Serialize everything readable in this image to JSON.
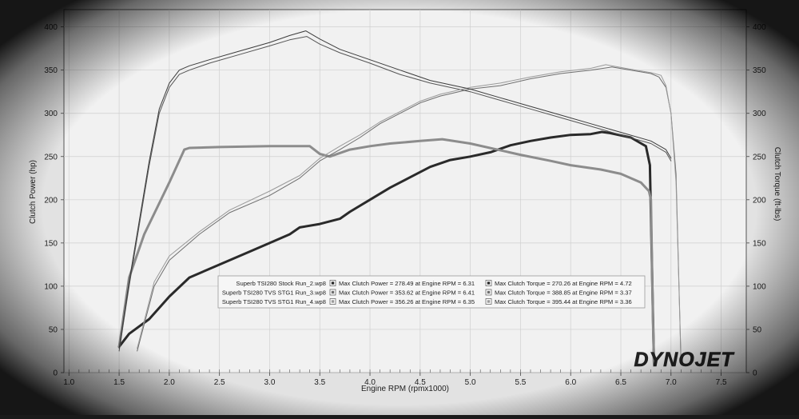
{
  "chart_data": {
    "type": "line",
    "xlabel": "Engine RPM (rpmx1000)",
    "ylabel_left": "Clutch Power (hp)",
    "ylabel_right": "Clutch Torque (ft-lbs)",
    "xlim": [
      0.95,
      7.75
    ],
    "ylim_left": [
      0,
      420
    ],
    "ylim_right": [
      0,
      420
    ],
    "x_ticks": [
      "1.0",
      "1.5",
      "2.0",
      "2.5",
      "3.0",
      "3.5",
      "4.0",
      "4.5",
      "5.0",
      "5.5",
      "6.0",
      "6.5",
      "7.0",
      "7.5"
    ],
    "y_ticks_left": [
      "0",
      "50",
      "100",
      "150",
      "200",
      "250",
      "300",
      "350",
      "400"
    ],
    "y_ticks_right": [
      "0",
      "50",
      "100",
      "150",
      "200",
      "250",
      "300",
      "350",
      "400"
    ],
    "grid": true,
    "logo": "DYNOJET",
    "legend": {
      "placement": "center",
      "rows": [
        {
          "run": "Superb TSI280 Stock Run_2.wp8",
          "power": "Max Clutch Power = 278.49 at Engine RPM = 6.31",
          "torque": "Max Clutch Torque = 270.26 at Engine RPM = 4.72"
        },
        {
          "run": "Superb TSI280 TVS STG1 Run_3.wp8",
          "power": "Max Clutch Power = 353.62 at Engine RPM = 6.41",
          "torque": "Max Clutch Torque = 388.85 at Engine RPM = 3.37"
        },
        {
          "run": "Superb TSI280 TVS STG1 Run_4.wp8",
          "power": "Max Clutch Power = 356.26 at Engine RPM = 6.35",
          "torque": "Max Clutch Torque = 395.44 at Engine RPM = 3.36"
        }
      ]
    },
    "series": [
      {
        "name": "Superb TSI280 Stock Run_2.wp8",
        "measure": "power",
        "color": "#2a2a2a",
        "width": 3,
        "x": [
          1.5,
          1.6,
          1.8,
          2.0,
          2.2,
          2.5,
          2.8,
          3.0,
          3.2,
          3.3,
          3.5,
          3.7,
          3.8,
          4.0,
          4.2,
          4.4,
          4.6,
          4.8,
          5.0,
          5.2,
          5.4,
          5.6,
          5.8,
          6.0,
          6.2,
          6.31,
          6.4,
          6.6,
          6.75,
          6.79,
          6.8,
          6.83
        ],
        "y": [
          30,
          45,
          62,
          88,
          110,
          125,
          140,
          150,
          160,
          168,
          172,
          178,
          186,
          200,
          214,
          226,
          238,
          246,
          250,
          255,
          263,
          268,
          272,
          275,
          276,
          278.5,
          277,
          272,
          262,
          240,
          180,
          10
        ]
      },
      {
        "name": "Superb TSI280 Stock Run_2.wp8",
        "measure": "torque",
        "color": "#8c8c8c",
        "width": 3,
        "x": [
          1.5,
          1.6,
          1.75,
          2.0,
          2.15,
          2.2,
          2.5,
          3.0,
          3.4,
          3.5,
          3.6,
          3.8,
          4.0,
          4.2,
          4.5,
          4.72,
          5.0,
          5.5,
          5.8,
          6.0,
          6.3,
          6.5,
          6.7,
          6.78,
          6.8,
          6.82,
          6.83
        ],
        "y": [
          30,
          110,
          160,
          220,
          258,
          260,
          261,
          262,
          262,
          253,
          250,
          258,
          262,
          265,
          268,
          270,
          265,
          252,
          245,
          240,
          235,
          230,
          220,
          210,
          200,
          60,
          10
        ]
      },
      {
        "name": "Superb TSI280 TVS STG1 Run_3.wp8",
        "measure": "power",
        "color": "#6e6e6e",
        "width": 1,
        "x": [
          1.68,
          1.85,
          2.0,
          2.3,
          2.6,
          3.0,
          3.3,
          3.5,
          3.7,
          3.9,
          4.1,
          4.3,
          4.5,
          4.7,
          5.0,
          5.3,
          5.6,
          5.9,
          6.2,
          6.41,
          6.6,
          6.8,
          6.88,
          6.95,
          7.0,
          7.05,
          7.1
        ],
        "y": [
          25,
          100,
          130,
          160,
          185,
          205,
          225,
          245,
          258,
          272,
          288,
          300,
          312,
          320,
          328,
          332,
          340,
          346,
          350,
          353.6,
          350,
          346,
          342,
          330,
          300,
          230,
          10
        ]
      },
      {
        "name": "Superb TSI280 TVS STG1 Run_3.wp8",
        "measure": "torque",
        "color": "#555555",
        "width": 1,
        "x": [
          1.5,
          1.6,
          1.7,
          1.8,
          1.9,
          2.0,
          2.1,
          2.2,
          2.4,
          2.7,
          3.0,
          3.2,
          3.37,
          3.5,
          3.7,
          4.0,
          4.3,
          4.6,
          5.0,
          5.3,
          5.6,
          5.9,
          6.2,
          6.5,
          6.8,
          6.95,
          7.0
        ],
        "y": [
          25,
          100,
          170,
          240,
          300,
          330,
          345,
          350,
          358,
          368,
          378,
          385,
          388.9,
          380,
          370,
          358,
          345,
          335,
          325,
          315,
          305,
          295,
          285,
          275,
          265,
          255,
          245
        ]
      },
      {
        "name": "Superb TSI280 TVS STG1 Run_4.wp8",
        "measure": "power",
        "color": "#9a9a9a",
        "width": 1,
        "x": [
          1.68,
          1.85,
          2.0,
          2.3,
          2.6,
          3.0,
          3.3,
          3.5,
          3.7,
          3.9,
          4.1,
          4.3,
          4.5,
          4.7,
          5.0,
          5.3,
          5.6,
          5.9,
          6.2,
          6.35,
          6.6,
          6.8,
          6.9,
          6.95,
          7.0,
          7.05,
          7.1
        ],
        "y": [
          28,
          105,
          135,
          163,
          188,
          210,
          228,
          248,
          262,
          275,
          290,
          302,
          314,
          322,
          330,
          335,
          342,
          348,
          352,
          356.3,
          351,
          347,
          344,
          332,
          300,
          220,
          10
        ]
      },
      {
        "name": "Superb TSI280 TVS STG1 Run_4.wp8",
        "measure": "torque",
        "color": "#3c3c3c",
        "width": 1,
        "x": [
          1.5,
          1.6,
          1.7,
          1.8,
          1.9,
          2.0,
          2.1,
          2.2,
          2.4,
          2.7,
          3.0,
          3.2,
          3.36,
          3.5,
          3.7,
          4.0,
          4.3,
          4.6,
          5.0,
          5.3,
          5.6,
          5.9,
          6.2,
          6.5,
          6.8,
          6.95,
          7.0
        ],
        "y": [
          28,
          105,
          175,
          245,
          305,
          335,
          350,
          355,
          362,
          372,
          382,
          390,
          395.4,
          386,
          374,
          362,
          350,
          338,
          328,
          318,
          308,
          298,
          288,
          278,
          268,
          258,
          248
        ]
      }
    ]
  }
}
